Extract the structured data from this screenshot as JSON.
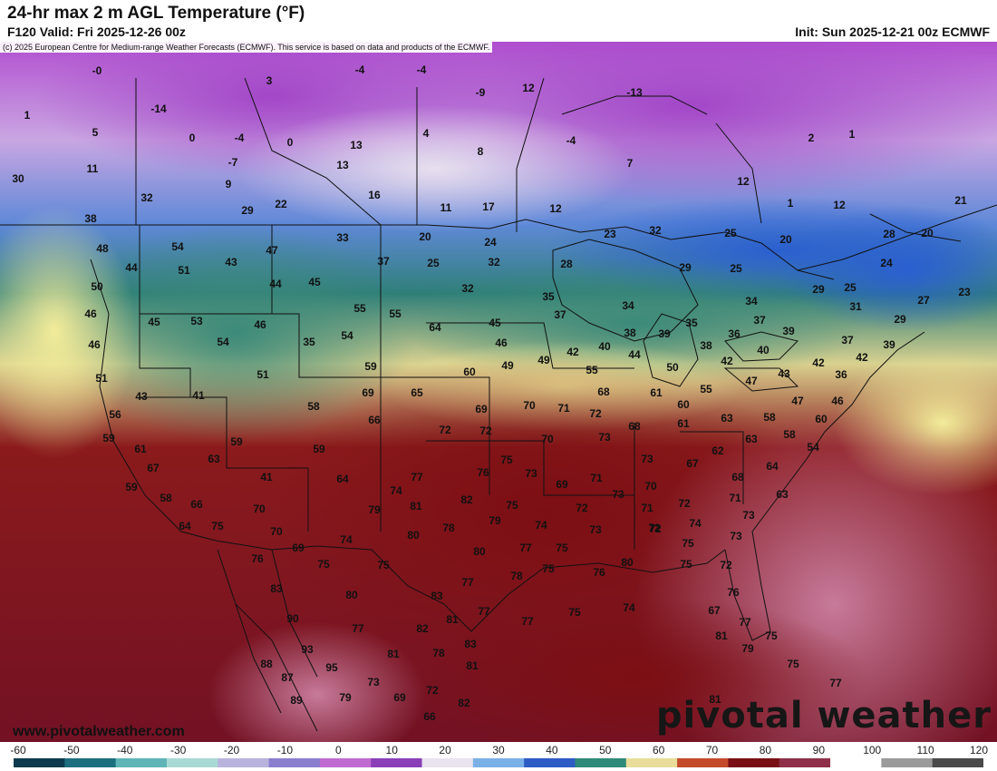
{
  "header": {
    "title": "24-hr max 2 m AGL Temperature (°F)",
    "valid": "F120 Valid: Fri 2025-12-26 00z",
    "init": "Init: Sun 2025-12-21 00z ECMWF"
  },
  "copyright": "(c) 2025 European Centre for Medium-range Weather Forecasts (ECMWF). This service is based on data and products of the ECMWF.",
  "website": "www.pivotalweather.com",
  "brand": "pivotal weather",
  "colorbar": {
    "labels": [
      "-60",
      "-50",
      "-40",
      "-30",
      "-20",
      "-10",
      "0",
      "10",
      "20",
      "30",
      "40",
      "50",
      "60",
      "70",
      "80",
      "90",
      "100",
      "110",
      "120"
    ],
    "colors": [
      "#0d3b4d",
      "#1d6f7f",
      "#5fb5b5",
      "#a9d9d4",
      "#b8b3dd",
      "#8a7fcf",
      "#c06bd0",
      "#8a3fb8",
      "#e9e3f0",
      "#7ab0e6",
      "#2d5cc4",
      "#2f8a7a",
      "#e8dd9a",
      "#c44a2c",
      "#7a1016",
      "#8f2f4a",
      "#ffffff",
      "#9a9a9a",
      "#4a4a4a"
    ]
  },
  "temps": [
    {
      "id": "t1",
      "value": "-0"
    },
    {
      "id": "t2",
      "value": "3"
    },
    {
      "id": "t3",
      "value": "-4"
    },
    {
      "id": "t4",
      "value": "-4"
    },
    {
      "id": "t5",
      "value": "12"
    },
    {
      "id": "t6",
      "value": "-13"
    },
    {
      "id": "t7",
      "value": "1"
    },
    {
      "id": "t8",
      "value": "-14"
    },
    {
      "id": "t9",
      "value": "5"
    },
    {
      "id": "t10",
      "value": "0"
    },
    {
      "id": "t11",
      "value": "-4"
    },
    {
      "id": "t12",
      "value": "0"
    },
    {
      "id": "t13",
      "value": "13"
    },
    {
      "id": "t14",
      "value": "4"
    },
    {
      "id": "t15",
      "value": "-9"
    },
    {
      "id": "t16",
      "value": "-4"
    },
    {
      "id": "t17",
      "value": "2"
    },
    {
      "id": "t18",
      "value": "1"
    },
    {
      "id": "t19",
      "value": "11"
    },
    {
      "id": "t20",
      "value": "-7"
    },
    {
      "id": "t21",
      "value": "13"
    },
    {
      "id": "t22",
      "value": "8"
    },
    {
      "id": "t23",
      "value": "7"
    },
    {
      "id": "t24",
      "value": "30"
    },
    {
      "id": "t25",
      "value": "9"
    },
    {
      "id": "t26",
      "value": "12"
    },
    {
      "id": "t27",
      "value": "32"
    },
    {
      "id": "t28",
      "value": "16"
    },
    {
      "id": "t29",
      "value": "1"
    },
    {
      "id": "t30",
      "value": "12"
    },
    {
      "id": "t31",
      "value": "21"
    },
    {
      "id": "t32",
      "value": "29"
    },
    {
      "id": "t33",
      "value": "22"
    },
    {
      "id": "t34",
      "value": "11"
    },
    {
      "id": "t35",
      "value": "17"
    },
    {
      "id": "t36",
      "value": "12"
    },
    {
      "id": "t37",
      "value": "38"
    },
    {
      "id": "t38",
      "value": "48"
    },
    {
      "id": "t39",
      "value": "54"
    },
    {
      "id": "t40",
      "value": "47"
    },
    {
      "id": "t41",
      "value": "33"
    },
    {
      "id": "t42",
      "value": "20"
    },
    {
      "id": "t43",
      "value": "24"
    },
    {
      "id": "t44",
      "value": "23"
    },
    {
      "id": "t45",
      "value": "32"
    },
    {
      "id": "t46",
      "value": "25"
    },
    {
      "id": "t47",
      "value": "20"
    },
    {
      "id": "t48",
      "value": "28"
    },
    {
      "id": "t49",
      "value": "20"
    },
    {
      "id": "t50",
      "value": "44"
    },
    {
      "id": "t51",
      "value": "51"
    },
    {
      "id": "t52",
      "value": "43"
    },
    {
      "id": "t53",
      "value": "37"
    },
    {
      "id": "t54",
      "value": "25"
    },
    {
      "id": "t55",
      "value": "32"
    },
    {
      "id": "t56",
      "value": "28"
    },
    {
      "id": "t57",
      "value": "29"
    },
    {
      "id": "t58",
      "value": "25"
    },
    {
      "id": "t59",
      "value": "24"
    },
    {
      "id": "t60",
      "value": "50"
    },
    {
      "id": "t61",
      "value": "44"
    },
    {
      "id": "t62",
      "value": "45"
    },
    {
      "id": "t63",
      "value": "32"
    },
    {
      "id": "t64",
      "value": "35"
    },
    {
      "id": "t65",
      "value": "29"
    },
    {
      "id": "t66",
      "value": "25"
    },
    {
      "id": "t67",
      "value": "27"
    },
    {
      "id": "t68",
      "value": "23"
    },
    {
      "id": "t69",
      "value": "46"
    },
    {
      "id": "t70",
      "value": "45"
    },
    {
      "id": "t71",
      "value": "53"
    },
    {
      "id": "t72",
      "value": "46"
    },
    {
      "id": "t73",
      "value": "55"
    },
    {
      "id": "t74",
      "value": "55"
    },
    {
      "id": "t75",
      "value": "64"
    },
    {
      "id": "t76",
      "value": "45"
    },
    {
      "id": "t77",
      "value": "37"
    },
    {
      "id": "t78",
      "value": "34"
    },
    {
      "id": "t79",
      "value": "34"
    },
    {
      "id": "t80",
      "value": "31"
    },
    {
      "id": "t81",
      "value": "29"
    },
    {
      "id": "t82",
      "value": "46"
    },
    {
      "id": "t83",
      "value": "54"
    },
    {
      "id": "t84",
      "value": "35"
    },
    {
      "id": "t85",
      "value": "54"
    },
    {
      "id": "t86",
      "value": "46"
    },
    {
      "id": "t87",
      "value": "38"
    },
    {
      "id": "t88",
      "value": "39"
    },
    {
      "id": "t89",
      "value": "35"
    },
    {
      "id": "t90",
      "value": "38"
    },
    {
      "id": "t91",
      "value": "36"
    },
    {
      "id": "t92",
      "value": "37"
    },
    {
      "id": "t93",
      "value": "39"
    },
    {
      "id": "t94",
      "value": "37"
    },
    {
      "id": "t95",
      "value": "39"
    },
    {
      "id": "t96",
      "value": "51"
    },
    {
      "id": "t97",
      "value": "51"
    },
    {
      "id": "t98",
      "value": "59"
    },
    {
      "id": "t99",
      "value": "60"
    },
    {
      "id": "t100",
      "value": "49"
    },
    {
      "id": "t101",
      "value": "49"
    },
    {
      "id": "t102",
      "value": "42"
    },
    {
      "id": "t103",
      "value": "40"
    },
    {
      "id": "t104",
      "value": "44"
    },
    {
      "id": "t105",
      "value": "40"
    },
    {
      "id": "t106",
      "value": "42"
    },
    {
      "id": "t107",
      "value": "42"
    },
    {
      "id": "t108",
      "value": "42"
    },
    {
      "id": "t109",
      "value": "43"
    },
    {
      "id": "t110",
      "value": "41"
    },
    {
      "id": "t111",
      "value": "69"
    },
    {
      "id": "t112",
      "value": "65"
    },
    {
      "id": "t113",
      "value": "55"
    },
    {
      "id": "t114",
      "value": "50"
    },
    {
      "id": "t115",
      "value": "47"
    },
    {
      "id": "t116",
      "value": "43"
    },
    {
      "id": "t117",
      "value": "36"
    },
    {
      "id": "t118",
      "value": "56"
    },
    {
      "id": "t119",
      "value": "58"
    },
    {
      "id": "t120",
      "value": "68"
    },
    {
      "id": "t121",
      "value": "61"
    },
    {
      "id": "t122",
      "value": "55"
    },
    {
      "id": "t123",
      "value": "47"
    },
    {
      "id": "t124",
      "value": "46"
    },
    {
      "id": "t125",
      "value": "66"
    },
    {
      "id": "t126",
      "value": "69"
    },
    {
      "id": "t127",
      "value": "70"
    },
    {
      "id": "t128",
      "value": "71"
    },
    {
      "id": "t129",
      "value": "72"
    },
    {
      "id": "t130",
      "value": "60"
    },
    {
      "id": "t131",
      "value": "58"
    },
    {
      "id": "t132",
      "value": "60"
    },
    {
      "id": "t133",
      "value": "59"
    },
    {
      "id": "t134",
      "value": "61"
    },
    {
      "id": "t135",
      "value": "72"
    },
    {
      "id": "t136",
      "value": "72"
    },
    {
      "id": "t137",
      "value": "68"
    },
    {
      "id": "t138",
      "value": "61"
    },
    {
      "id": "t139",
      "value": "63"
    },
    {
      "id": "t140",
      "value": "58"
    },
    {
      "id": "t141",
      "value": "54"
    },
    {
      "id": "t142",
      "value": "63"
    },
    {
      "id": "t143",
      "value": "59"
    },
    {
      "id": "t144",
      "value": "70"
    },
    {
      "id": "t145",
      "value": "73"
    },
    {
      "id": "t146",
      "value": "62"
    },
    {
      "id": "t147",
      "value": "63"
    },
    {
      "id": "t148",
      "value": "59"
    },
    {
      "id": "t149",
      "value": "73"
    },
    {
      "id": "t150",
      "value": "67"
    },
    {
      "id": "t151",
      "value": "64"
    },
    {
      "id": "t152",
      "value": "63"
    },
    {
      "id": "t153",
      "value": "75"
    },
    {
      "id": "t154",
      "value": "73"
    },
    {
      "id": "t155",
      "value": "71"
    },
    {
      "id": "t156",
      "value": "68"
    },
    {
      "id": "t157",
      "value": "59"
    },
    {
      "id": "t158",
      "value": "41"
    },
    {
      "id": "t159",
      "value": "64"
    },
    {
      "id": "t160",
      "value": "77"
    },
    {
      "id": "t161",
      "value": "76"
    },
    {
      "id": "t162",
      "value": "69"
    },
    {
      "id": "t163",
      "value": "73"
    },
    {
      "id": "t164",
      "value": "70"
    },
    {
      "id": "t165",
      "value": "72"
    },
    {
      "id": "t166",
      "value": "71"
    },
    {
      "id": "t167",
      "value": "67"
    },
    {
      "id": "t168",
      "value": "58"
    },
    {
      "id": "t169",
      "value": "66"
    },
    {
      "id": "t170",
      "value": "74"
    },
    {
      "id": "t171",
      "value": "82"
    },
    {
      "id": "t172",
      "value": "75"
    },
    {
      "id": "t173",
      "value": "71"
    },
    {
      "id": "t174",
      "value": "72"
    },
    {
      "id": "t175",
      "value": "73"
    },
    {
      "id": "t176",
      "value": "64"
    },
    {
      "id": "t177",
      "value": "75"
    },
    {
      "id": "t178",
      "value": "70"
    },
    {
      "id": "t179",
      "value": "79"
    },
    {
      "id": "t180",
      "value": "81"
    },
    {
      "id": "t181",
      "value": "79"
    },
    {
      "id": "t182",
      "value": "74"
    },
    {
      "id": "t183",
      "value": "72"
    },
    {
      "id": "t184",
      "value": "73"
    },
    {
      "id": "t185",
      "value": "72"
    },
    {
      "id": "t186",
      "value": "74"
    },
    {
      "id": "t187",
      "value": "73"
    },
    {
      "id": "t188",
      "value": "70"
    },
    {
      "id": "t189",
      "value": "69"
    },
    {
      "id": "t190",
      "value": "74"
    },
    {
      "id": "t191",
      "value": "78"
    },
    {
      "id": "t192",
      "value": "80"
    },
    {
      "id": "t193",
      "value": "75"
    },
    {
      "id": "t194",
      "value": "75"
    },
    {
      "id": "t195",
      "value": "76"
    },
    {
      "id": "t196",
      "value": "75"
    },
    {
      "id": "t197",
      "value": "80"
    },
    {
      "id": "t198",
      "value": "77"
    },
    {
      "id": "t199",
      "value": "75"
    },
    {
      "id": "t200",
      "value": "72"
    },
    {
      "id": "t201",
      "value": "76"
    },
    {
      "id": "t202",
      "value": "78"
    },
    {
      "id": "t203",
      "value": "75"
    },
    {
      "id": "t204",
      "value": "75"
    },
    {
      "id": "t205",
      "value": "80"
    },
    {
      "id": "t206",
      "value": "83"
    },
    {
      "id": "t207",
      "value": "80"
    },
    {
      "id": "t208",
      "value": "77"
    },
    {
      "id": "t209",
      "value": "76"
    },
    {
      "id": "t210",
      "value": "90"
    },
    {
      "id": "t211",
      "value": "83"
    },
    {
      "id": "t212",
      "value": "81"
    },
    {
      "id": "t213",
      "value": "77"
    },
    {
      "id": "t214",
      "value": "75"
    },
    {
      "id": "t215",
      "value": "74"
    },
    {
      "id": "t216",
      "value": "77"
    },
    {
      "id": "t217",
      "value": "67"
    },
    {
      "id": "t218",
      "value": "77"
    },
    {
      "id": "t219",
      "value": "82"
    },
    {
      "id": "t220",
      "value": "93"
    },
    {
      "id": "t221",
      "value": "77"
    },
    {
      "id": "t222",
      "value": "78"
    },
    {
      "id": "t223",
      "value": "83"
    },
    {
      "id": "t224",
      "value": "81"
    },
    {
      "id": "t225",
      "value": "79"
    },
    {
      "id": "t226",
      "value": "75"
    },
    {
      "id": "t227",
      "value": "88"
    },
    {
      "id": "t228",
      "value": "81"
    },
    {
      "id": "t229",
      "value": "95"
    },
    {
      "id": "t230",
      "value": "87"
    },
    {
      "id": "t231",
      "value": "81"
    },
    {
      "id": "t232",
      "value": "75"
    },
    {
      "id": "t233",
      "value": "73"
    },
    {
      "id": "t234",
      "value": "89"
    },
    {
      "id": "t235",
      "value": "79"
    },
    {
      "id": "t236",
      "value": "69"
    },
    {
      "id": "t237",
      "value": "72"
    },
    {
      "id": "t238",
      "value": "82"
    },
    {
      "id": "t239",
      "value": "77"
    },
    {
      "id": "t240",
      "value": "66"
    },
    {
      "id": "t241",
      "value": "81"
    }
  ]
}
